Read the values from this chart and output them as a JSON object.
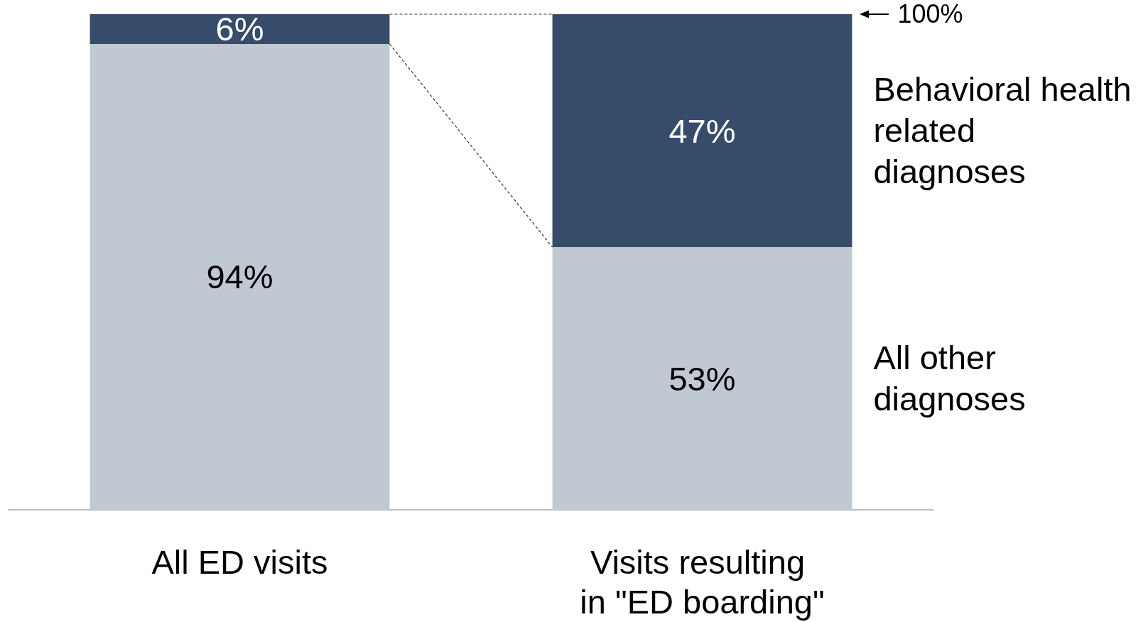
{
  "chart_data": {
    "type": "bar",
    "stacked": true,
    "legend": false,
    "tick_labels": "x",
    "categories": [
      "All ED visits",
      "Visits resulting in \"ED boarding\""
    ],
    "series": [
      {
        "name": "All other diagnoses",
        "color": "#c0c8d2",
        "values": [
          94,
          53
        ],
        "value_labels": [
          "94%",
          "53%"
        ]
      },
      {
        "name": "Behavioral health related diagnoses",
        "color": "#374b6b",
        "values": [
          6,
          47
        ],
        "value_labels": [
          "6%",
          "47%"
        ]
      }
    ],
    "annotations": [
      "100%"
    ]
  }
}
